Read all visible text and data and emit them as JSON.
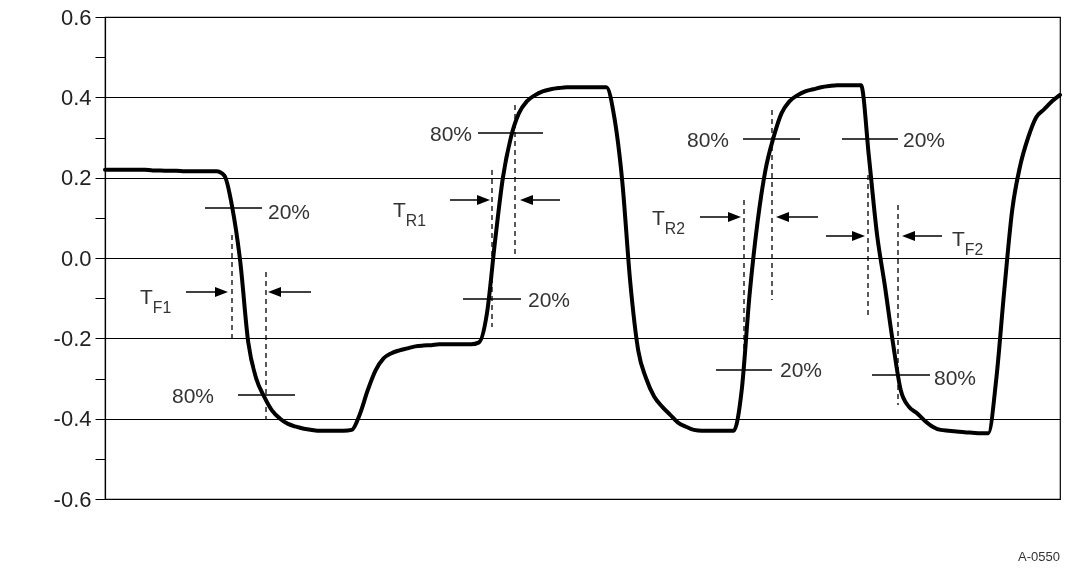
{
  "chart_data": {
    "type": "line",
    "categories": [
      null,
      null,
      null,
      null,
      null,
      null,
      null,
      null,
      null,
      null,
      null,
      null,
      null,
      null,
      null,
      null,
      null,
      null,
      null,
      null,
      null,
      null,
      null,
      null,
      null,
      null,
      null,
      null,
      null,
      null,
      null,
      null,
      null,
      null,
      null,
      null,
      null,
      null,
      null,
      null,
      null,
      null,
      null,
      null,
      null,
      null,
      null,
      null,
      null,
      null,
      null,
      null,
      null,
      null,
      null,
      null,
      null,
      null,
      null,
      null,
      null,
      null,
      null,
      null,
      null,
      null,
      null,
      null,
      null,
      null,
      null,
      null,
      null,
      null,
      null,
      null,
      null,
      null,
      null,
      null,
      null,
      null,
      null,
      null,
      null,
      null,
      null,
      null,
      null,
      null,
      null,
      null,
      null,
      null,
      null,
      null,
      null,
      null,
      null,
      null,
      null,
      null,
      null,
      null,
      null,
      null,
      null,
      null,
      null,
      null,
      null,
      null,
      null,
      null,
      null,
      null,
      null,
      null,
      null,
      null,
      null
    ],
    "series": [
      {
        "color": "#000000",
        "values": [
          0.22,
          0.22,
          0.22,
          0.22,
          0.22,
          0.22,
          0.218,
          0.218,
          0.217,
          0.217,
          0.216,
          0.216,
          0.216,
          0.216,
          0.216,
          0.205,
          0.125,
          -0.01,
          -0.21,
          -0.3,
          -0.345,
          -0.38,
          -0.4,
          -0.413,
          -0.42,
          -0.425,
          -0.428,
          -0.43,
          -0.43,
          -0.43,
          -0.43,
          -0.428,
          -0.39,
          -0.33,
          -0.28,
          -0.25,
          -0.237,
          -0.23,
          -0.225,
          -0.22,
          -0.218,
          -0.217,
          -0.215,
          -0.215,
          -0.215,
          -0.215,
          -0.215,
          -0.21,
          -0.137,
          0.04,
          0.2,
          0.3,
          0.36,
          0.39,
          0.405,
          0.415,
          0.42,
          0.423,
          0.425,
          0.425,
          0.425,
          0.425,
          0.425,
          0.425,
          0.35,
          0.19,
          -0.06,
          -0.23,
          -0.3,
          -0.345,
          -0.37,
          -0.39,
          -0.41,
          -0.42,
          -0.428,
          -0.43,
          -0.43,
          -0.43,
          -0.43,
          -0.43,
          -0.33,
          -0.09,
          0.09,
          0.22,
          0.3,
          0.36,
          0.39,
          0.405,
          0.415,
          0.42,
          0.425,
          0.428,
          0.43,
          0.43,
          0.43,
          0.43,
          0.25,
          0.06,
          -0.07,
          -0.21,
          -0.33,
          -0.37,
          -0.386,
          -0.405,
          -0.42,
          -0.428,
          -0.43,
          -0.432,
          -0.434,
          -0.435,
          -0.436,
          -0.436,
          -0.3,
          -0.08,
          0.12,
          0.23,
          0.3,
          0.35,
          0.37,
          0.39,
          0.406
        ]
      }
    ],
    "ylim": [
      -0.6,
      0.6
    ],
    "yticks": [
      -0.6,
      {
        "value": -0.5,
        "label": null
      },
      -0.4,
      {
        "value": -0.3,
        "label": null
      },
      -0.2,
      {
        "value": -0.1,
        "label": null
      },
      {
        "value": 0,
        "label": "0.0"
      },
      {
        "value": 0.1,
        "label": null
      },
      0.2,
      {
        "value": 0.3,
        "label": null
      },
      0.4,
      {
        "value": 0.5,
        "label": null
      },
      0.6
    ],
    "grid": "y",
    "tick_labels": "y",
    "annotations": [
      "20%",
      "T$_{F1}$",
      "80%",
      "80%",
      "T$_{R1}$",
      "20%",
      "80%",
      "T$_{R2}$",
      "20%",
      "20%",
      "T$_{F2}$",
      "80%",
      "A-0550"
    ]
  }
}
